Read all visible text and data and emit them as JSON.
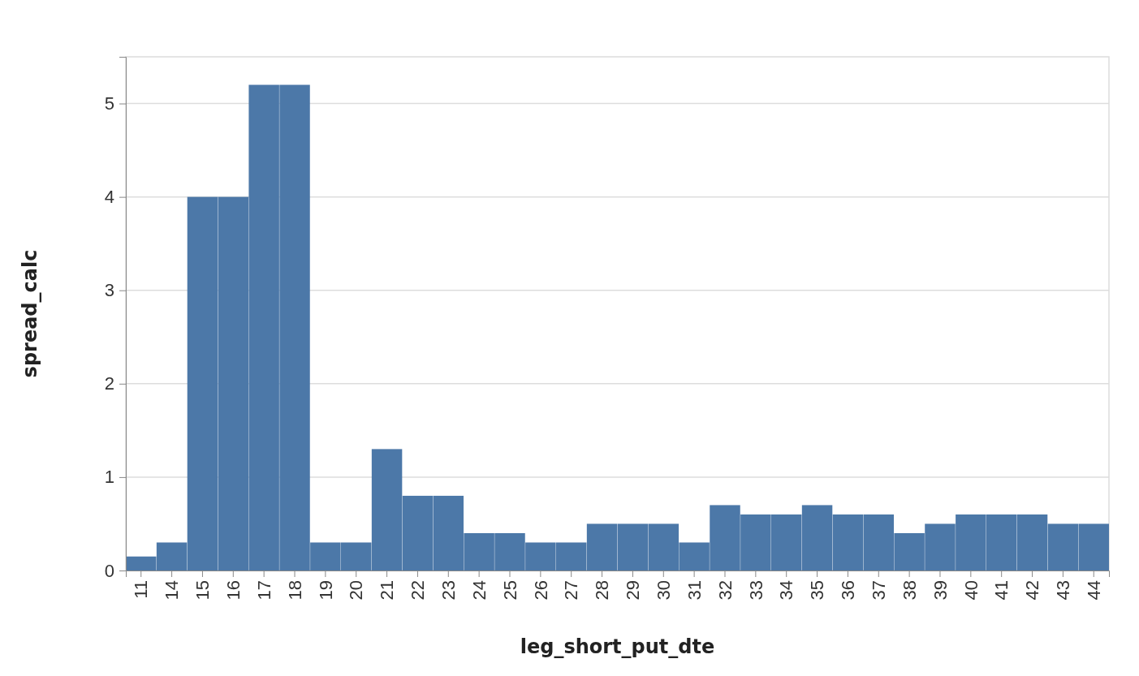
{
  "chart_data": {
    "type": "bar",
    "xlabel": "leg_short_put_dte",
    "ylabel": "spread_calc",
    "categories": [
      "11",
      "14",
      "15",
      "16",
      "17",
      "18",
      "19",
      "20",
      "21",
      "22",
      "23",
      "24",
      "25",
      "26",
      "27",
      "28",
      "29",
      "30",
      "31",
      "32",
      "33",
      "34",
      "35",
      "36",
      "37",
      "38",
      "39",
      "40",
      "41",
      "42",
      "43",
      "44"
    ],
    "values": [
      0.15,
      0.3,
      4.0,
      4.0,
      5.2,
      5.2,
      0.3,
      0.3,
      1.3,
      0.8,
      0.8,
      0.4,
      0.4,
      0.3,
      0.3,
      0.5,
      0.5,
      0.5,
      0.3,
      0.7,
      0.6,
      0.6,
      0.7,
      0.6,
      0.6,
      0.4,
      0.5,
      0.6,
      0.6,
      0.6,
      0.5,
      0.5
    ],
    "color": "#4c78a8",
    "ylim": [
      0,
      5.5
    ],
    "yticks": [
      0,
      1,
      2,
      3,
      4,
      5
    ],
    "grid": "y"
  }
}
